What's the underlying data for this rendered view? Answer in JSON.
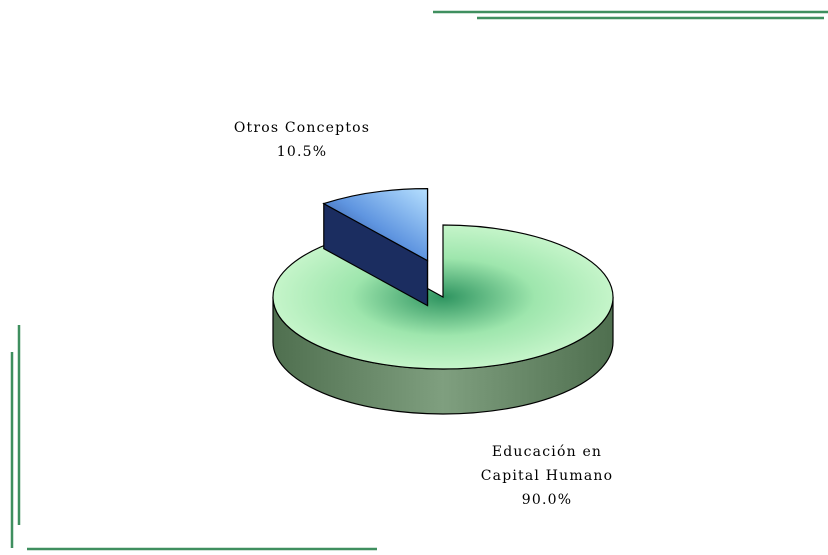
{
  "chart_data": {
    "type": "pie",
    "categories": [
      "Otros Conceptos",
      "Educación en Capital Humano"
    ],
    "values": [
      10.5,
      90.0
    ],
    "value_labels": [
      "10.5%",
      "90.0%"
    ],
    "colors": [
      "#6fa8f0",
      "#bff5c2"
    ]
  }
}
